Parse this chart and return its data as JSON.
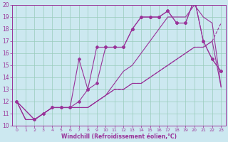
{
  "background_color": "#cce8f0",
  "grid_color": "#99ccbb",
  "line_color": "#993399",
  "xlabel": "Windchill (Refroidissement éolien,°C)",
  "xlabel_color": "#993399",
  "tick_color": "#993399",
  "xlim": [
    -0.5,
    23.5
  ],
  "ylim": [
    10,
    20
  ],
  "yticks": [
    10,
    11,
    12,
    13,
    14,
    15,
    16,
    17,
    18,
    19,
    20
  ],
  "xticks": [
    0,
    1,
    2,
    3,
    4,
    5,
    6,
    7,
    8,
    9,
    10,
    11,
    12,
    13,
    14,
    15,
    16,
    17,
    18,
    19,
    20,
    21,
    22,
    23
  ],
  "series": [
    {
      "x": [
        0,
        1,
        2,
        3,
        4,
        5,
        6,
        7,
        8,
        9,
        10,
        11,
        12,
        13,
        14,
        15,
        16,
        17,
        18,
        19,
        20,
        21,
        22,
        23
      ],
      "y": [
        12,
        10.5,
        10.5,
        11,
        11.5,
        11.5,
        11.5,
        11.5,
        11.5,
        12,
        12.5,
        13,
        13,
        13.5,
        13.5,
        14,
        14.5,
        15,
        15.5,
        16,
        16.5,
        16.5,
        17,
        13.2
      ],
      "marker": false,
      "linestyle": "-",
      "linewidth": 0.8
    },
    {
      "x": [
        0,
        1,
        2,
        3,
        4,
        5,
        6,
        7,
        8,
        9,
        10,
        11,
        12,
        13,
        14,
        15,
        16,
        17,
        18,
        19,
        20,
        21,
        22,
        23
      ],
      "y": [
        12,
        10.5,
        10.5,
        11,
        11.5,
        11.5,
        11.5,
        11.5,
        11.5,
        12,
        12.5,
        13.5,
        14.5,
        15,
        16,
        17,
        18,
        19.0,
        19.0,
        19.0,
        20.0,
        19.0,
        18.5,
        13.2
      ],
      "marker": false,
      "linestyle": "-",
      "linewidth": 0.8
    },
    {
      "x": [
        0,
        1,
        2,
        3,
        4,
        5,
        6,
        7,
        8,
        9,
        10,
        11,
        12,
        13,
        14,
        15,
        16,
        17,
        18,
        19,
        20,
        21,
        22,
        23
      ],
      "y": [
        12,
        10.5,
        10.5,
        11,
        11.5,
        11.5,
        11.5,
        11.5,
        11.5,
        12,
        12.5,
        13,
        13,
        13.5,
        13.5,
        14,
        14.5,
        15,
        15.5,
        16,
        16.5,
        16.5,
        17,
        18.5
      ],
      "marker": false,
      "linestyle": "--",
      "linewidth": 0.8
    },
    {
      "x": [
        0,
        2,
        3,
        4,
        5,
        6,
        7,
        8,
        9,
        10,
        11,
        12,
        13,
        14,
        15,
        16,
        17,
        18,
        19,
        20,
        21,
        22,
        23
      ],
      "y": [
        12,
        10.5,
        11,
        11.5,
        11.5,
        11.5,
        15.5,
        13.0,
        16.5,
        16.5,
        16.5,
        16.5,
        18,
        19,
        19,
        19,
        19.5,
        18.5,
        18.5,
        20.5,
        17,
        15.5,
        14.5
      ],
      "marker": true,
      "linestyle": "-",
      "linewidth": 0.8
    },
    {
      "x": [
        0,
        2,
        3,
        4,
        5,
        6,
        7,
        8,
        9,
        10,
        11,
        12,
        13,
        14,
        15,
        16,
        17,
        18,
        19,
        20,
        21,
        22,
        23
      ],
      "y": [
        12,
        10.5,
        11,
        11.5,
        11.5,
        11.5,
        12,
        13,
        13.5,
        16.5,
        16.5,
        16.5,
        18,
        19,
        19,
        19,
        19.5,
        18.5,
        18.5,
        20.5,
        17,
        15.5,
        14.5
      ],
      "marker": true,
      "linestyle": "-",
      "linewidth": 0.8
    }
  ]
}
